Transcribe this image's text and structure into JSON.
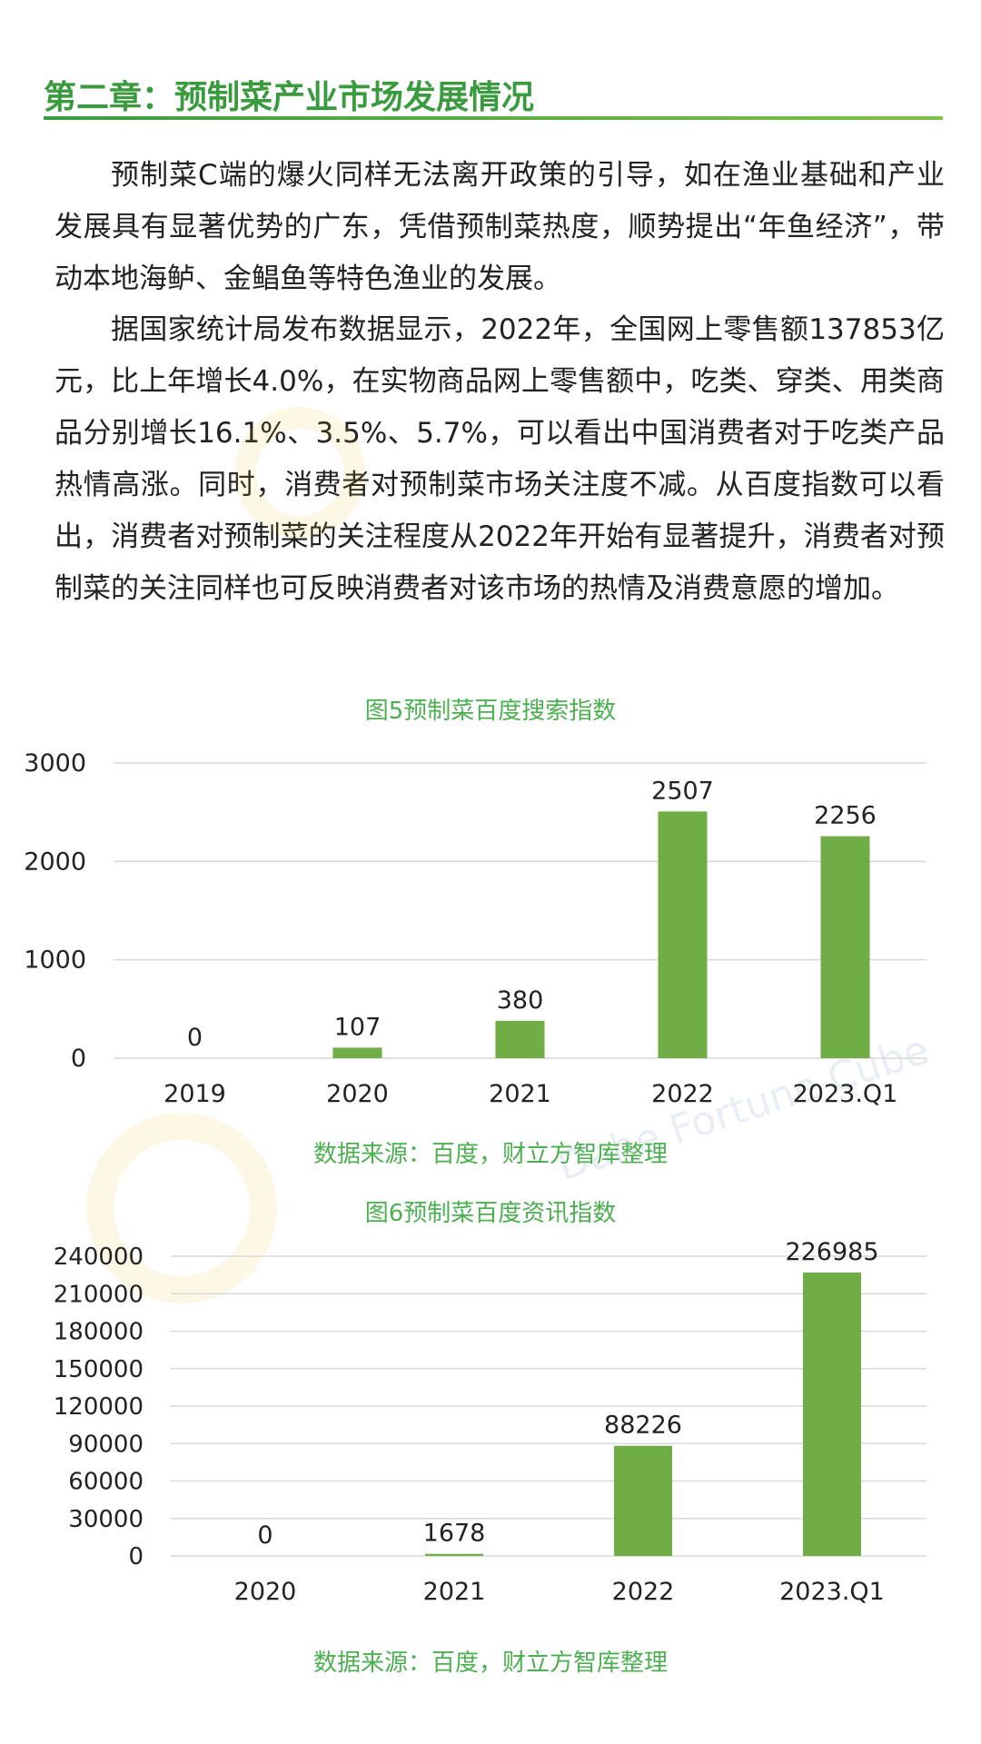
{
  "heading": "第二章：预制菜产业市场发展情况",
  "paragraphs": [
    "预制菜C端的爆火同样无法离开政策的引导，如在渔业基础和产业发展具有显著优势的广东，凭借预制菜热度，顺势提出“年鱼经济”，带动本地海鲈、金鲳鱼等特色渔业的发展。",
    "据国家统计局发布数据显示，2022年，全国网上零售额137853亿元，比上年增长4.0%，在实物商品网上零售额中，吃类、穿类、用类商品分别增长16.1%、3.5%、5.7%，可以看出中国消费者对于吃类产品热情高涨。同时，消费者对预制菜市场关注度不减。从百度指数可以看出，消费者对预制菜的关注程度从2022年开始有显著提升，消费者对预制菜的关注同样也可反映消费者对该市场的热情及消费意愿的增加。"
  ],
  "figures": [
    {
      "title": "图5预制菜百度搜索指数",
      "source": "数据来源：百度，财立方智库整理"
    },
    {
      "title": "图6预制菜百度资讯指数",
      "source": "数据来源：百度，财立方智库整理"
    }
  ],
  "watermark": {
    "text": "Dahe Fortune Cube"
  },
  "colors": {
    "bar": "#70ad47",
    "heading": "#3a9a3e",
    "caption": "#4caf50"
  },
  "chart_data": [
    {
      "type": "bar",
      "title": "图5预制菜百度搜索指数",
      "categories": [
        "2019",
        "2020",
        "2021",
        "2022",
        "2023.Q1"
      ],
      "values": [
        0,
        107,
        380,
        2507,
        2256
      ],
      "yticks": [
        0,
        1000,
        2000,
        3000
      ],
      "ylim": [
        0,
        3000
      ],
      "grid": true,
      "xlabel": "",
      "ylabel": ""
    },
    {
      "type": "bar",
      "title": "图6预制菜百度资讯指数",
      "categories": [
        "2020",
        "2021",
        "2022",
        "2023.Q1"
      ],
      "values": [
        0,
        1678,
        88226,
        226985
      ],
      "yticks": [
        0,
        30000,
        60000,
        90000,
        120000,
        150000,
        180000,
        210000,
        240000
      ],
      "ylim": [
        0,
        240000
      ],
      "grid": true,
      "xlabel": "",
      "ylabel": ""
    }
  ]
}
